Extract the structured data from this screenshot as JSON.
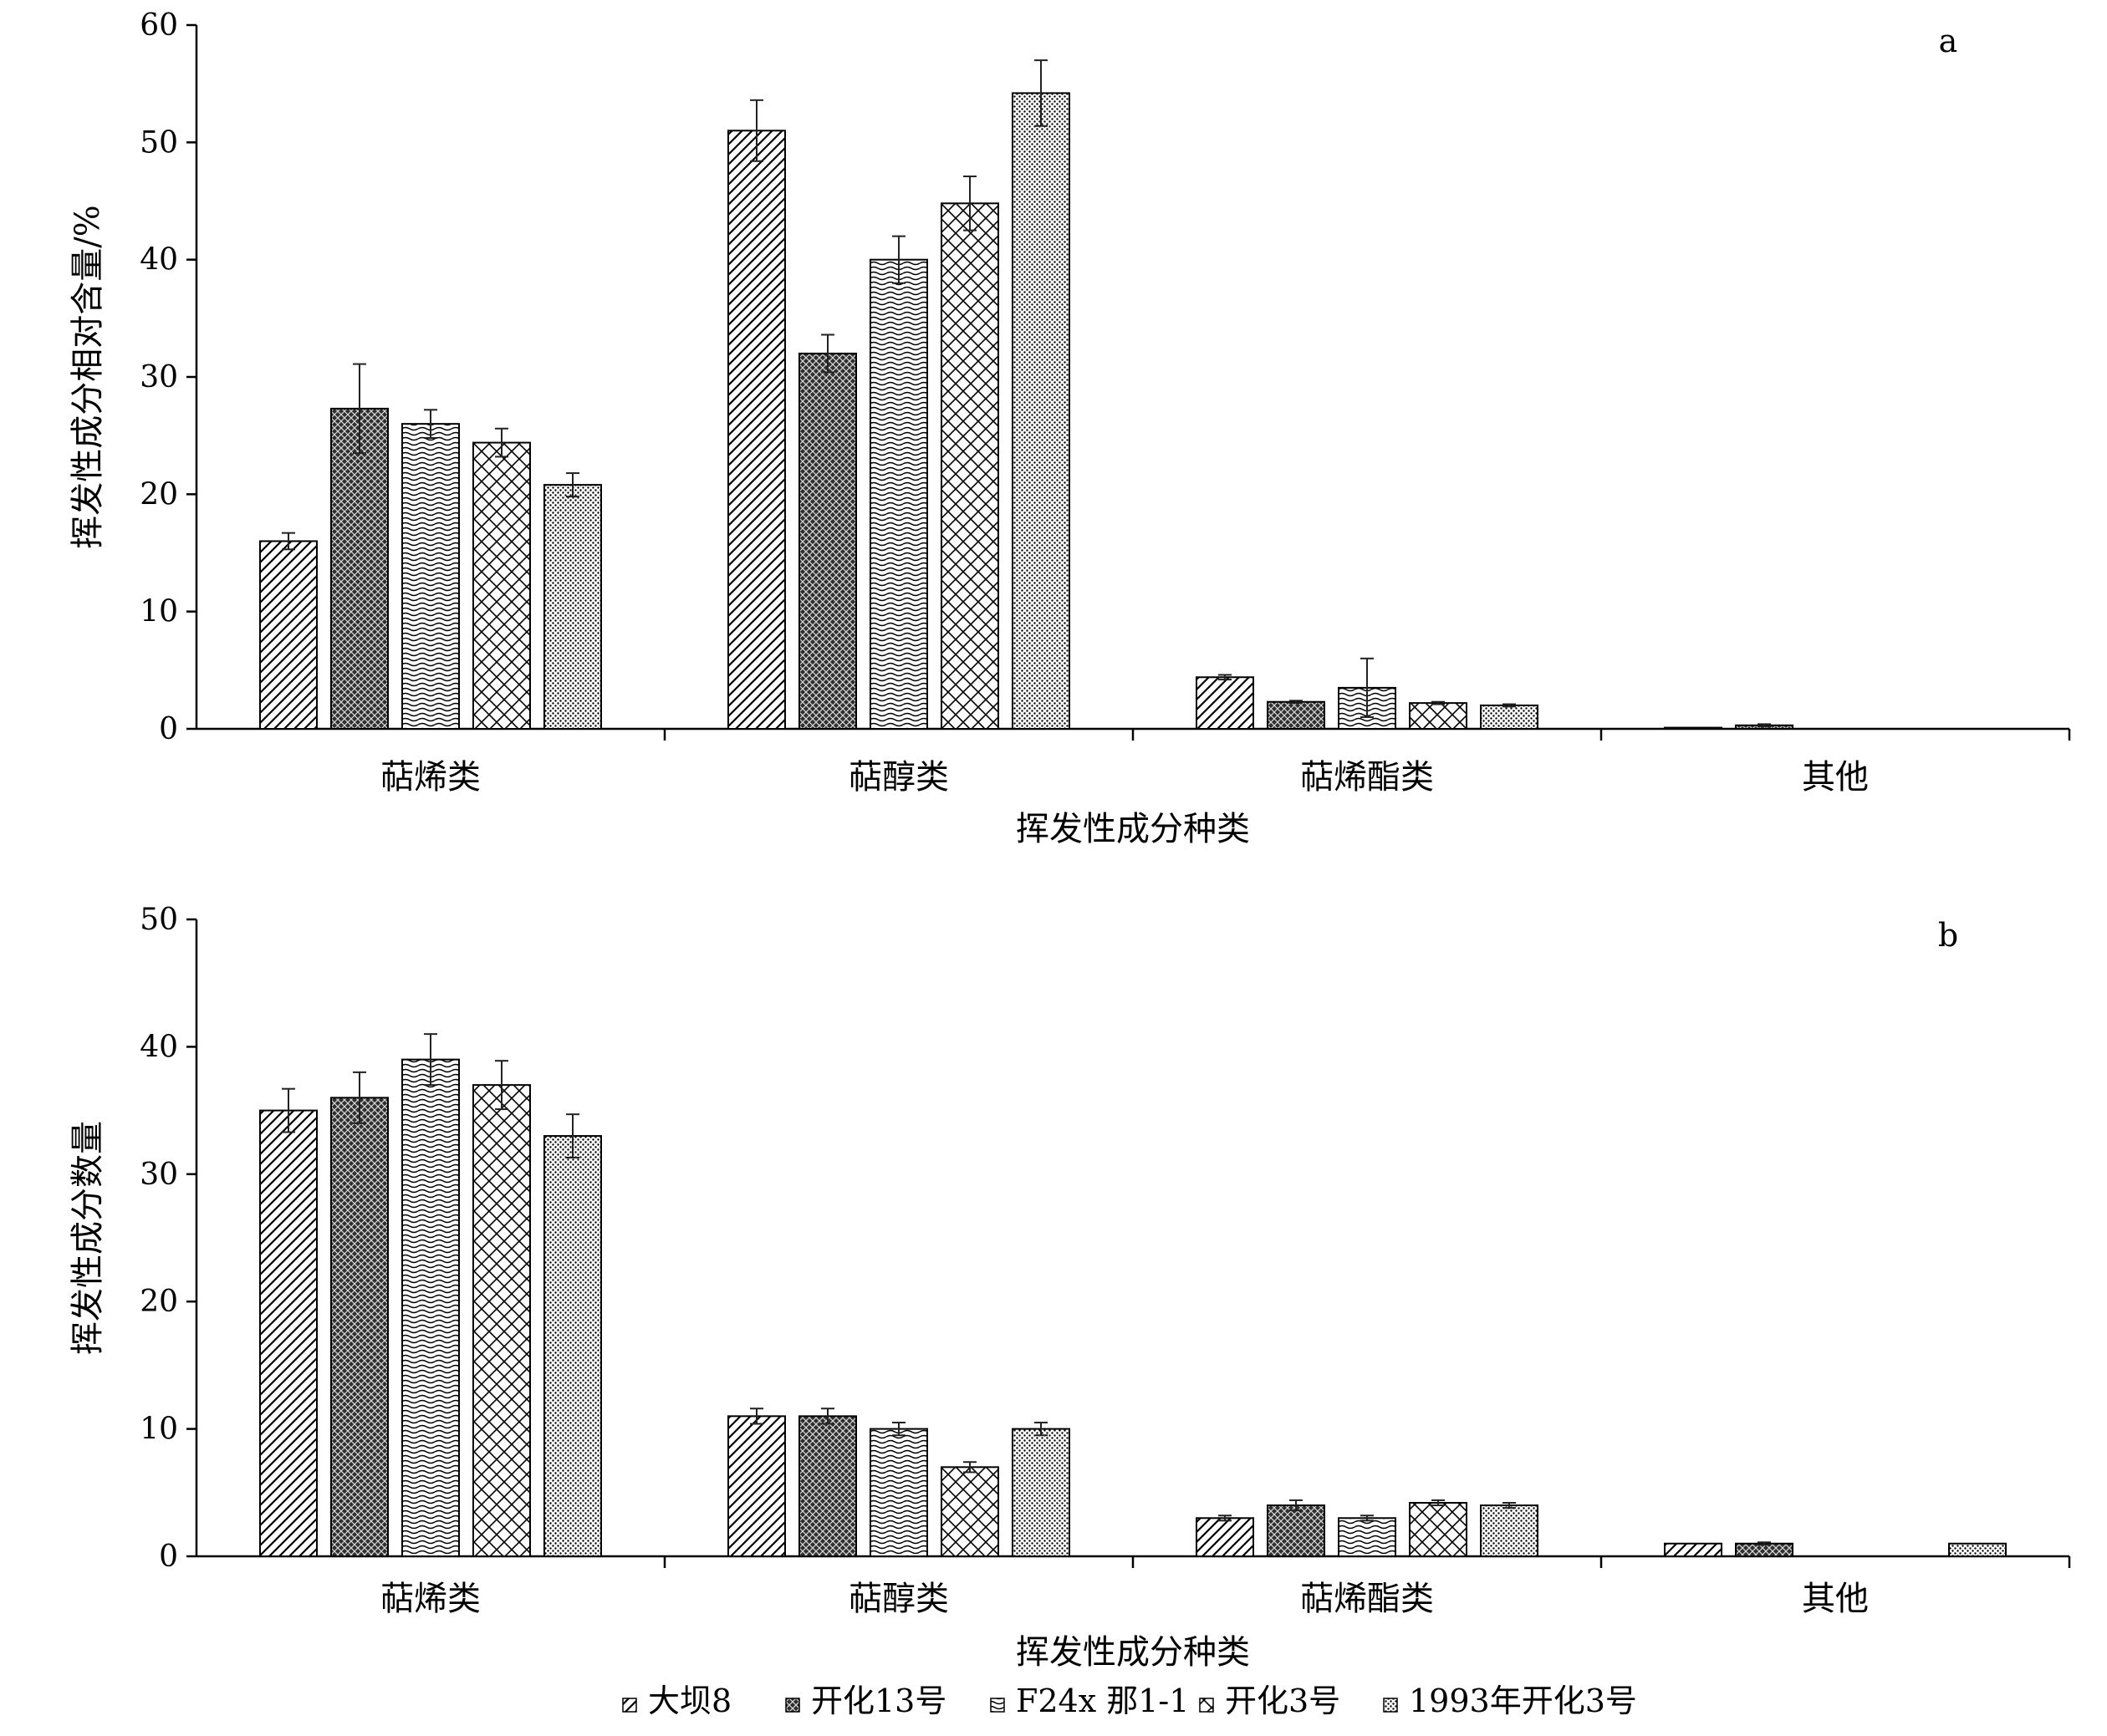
{
  "chart_data": [
    {
      "type": "bar",
      "panel_label": "a",
      "xlabel": "挥发性成分种类",
      "ylabel": "挥发性成分相对含量/%",
      "ylim": [
        0,
        60
      ],
      "yticks": [
        0,
        10,
        20,
        30,
        40,
        50,
        60
      ],
      "categories": [
        "萜烯类",
        "萜醇类",
        "萜烯酯类",
        "其他"
      ],
      "series": [
        {
          "name": "大坝8",
          "values": [
            16.0,
            51.0,
            4.4,
            0.1
          ],
          "errors": [
            0.7,
            2.6,
            0.2,
            0.0
          ]
        },
        {
          "name": "开化13号",
          "values": [
            27.3,
            32.0,
            2.3,
            0.3
          ],
          "errors": [
            3.8,
            1.6,
            0.1,
            0.1
          ]
        },
        {
          "name": "F24x 那1-1",
          "values": [
            26.0,
            40.0,
            3.5,
            0.0
          ],
          "errors": [
            1.2,
            2.0,
            2.5,
            0.0
          ]
        },
        {
          "name": "开化3号",
          "values": [
            24.4,
            44.8,
            2.2,
            0.0
          ],
          "errors": [
            1.2,
            2.3,
            0.1,
            0.0
          ]
        },
        {
          "name": "1993年开化3号",
          "values": [
            20.8,
            54.2,
            2.0,
            0.0
          ],
          "errors": [
            1.0,
            2.8,
            0.1,
            0.0
          ]
        }
      ]
    },
    {
      "type": "bar",
      "panel_label": "b",
      "xlabel": "挥发性成分种类",
      "ylabel": "挥发性成分数量",
      "ylim": [
        0,
        50
      ],
      "yticks": [
        0,
        10,
        20,
        30,
        40,
        50
      ],
      "categories": [
        "萜烯类",
        "萜醇类",
        "萜烯酯类",
        "其他"
      ],
      "series": [
        {
          "name": "大坝8",
          "values": [
            35.0,
            11.0,
            3.0,
            1.0
          ],
          "errors": [
            1.7,
            0.6,
            0.2,
            0.0
          ]
        },
        {
          "name": "开化13号",
          "values": [
            36.0,
            11.0,
            4.0,
            1.0
          ],
          "errors": [
            2.0,
            0.6,
            0.4,
            0.1
          ]
        },
        {
          "name": "F24x 那1-1",
          "values": [
            39.0,
            10.0,
            3.0,
            0.0
          ],
          "errors": [
            2.0,
            0.5,
            0.2,
            0.0
          ]
        },
        {
          "name": "开化3号",
          "values": [
            37.0,
            7.0,
            4.2,
            0.0
          ],
          "errors": [
            1.9,
            0.4,
            0.2,
            0.0
          ]
        },
        {
          "name": "1993年开化3号",
          "values": [
            33.0,
            10.0,
            4.0,
            1.0
          ],
          "errors": [
            1.7,
            0.5,
            0.2,
            0.0
          ]
        }
      ]
    }
  ],
  "legend": {
    "position": "bottom",
    "items": [
      "大坝8",
      "开化13号",
      "F24x 那1-1",
      "开化3号",
      "1993年开化3号"
    ]
  }
}
